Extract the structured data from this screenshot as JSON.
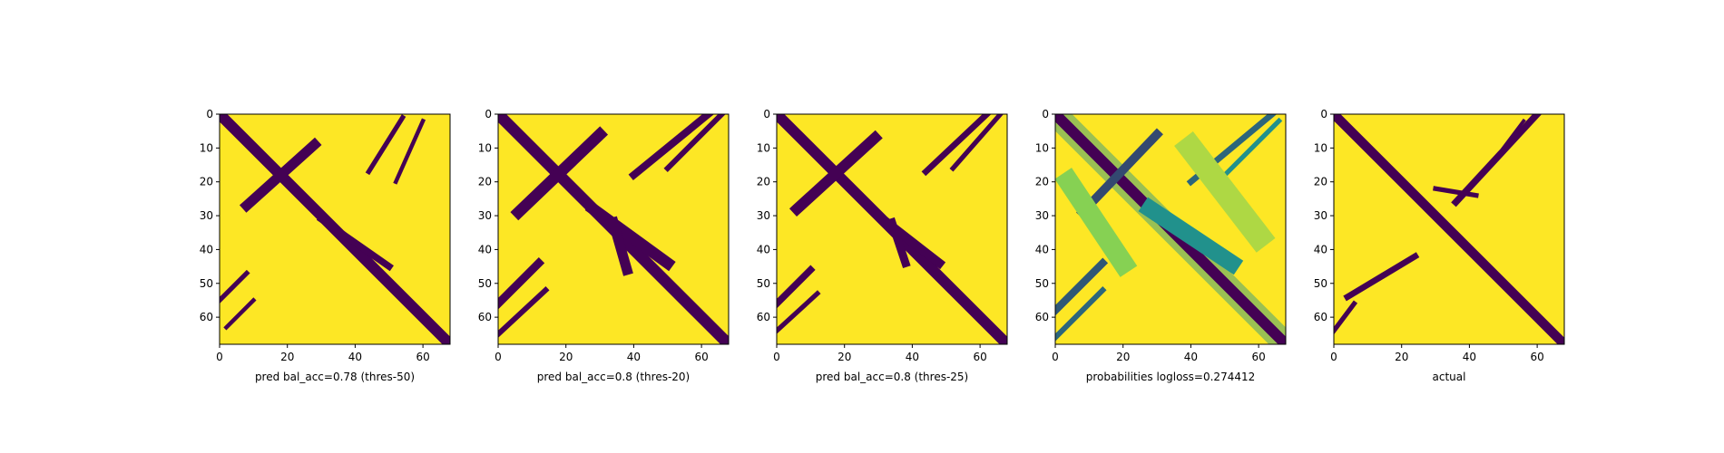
{
  "colors": {
    "background": "#fde725",
    "mark": "#440154",
    "mid": "#21918c",
    "light": "#5ec962"
  },
  "chart_data": [
    {
      "type": "heatmap",
      "xlabel": "pred bal_acc=0.78 (thres-50)",
      "xticks": [
        "0",
        "20",
        "40",
        "60"
      ],
      "yticks": [
        "0",
        "10",
        "20",
        "30",
        "40",
        "50",
        "60"
      ],
      "xlim": [
        0,
        68
      ],
      "ylim": [
        68,
        0
      ],
      "bands": [
        {
          "path": [
            [
              0,
              0
            ],
            [
              68,
              68
            ]
          ],
          "width": 3.2,
          "value": 0
        },
        {
          "path": [
            [
              8,
              27
            ],
            [
              28,
              9
            ]
          ],
          "width": 3.0,
          "value": 0
        },
        {
          "path": [
            [
              54,
              1
            ],
            [
              44,
              17
            ]
          ],
          "width": 1.4,
          "value": 0
        },
        {
          "path": [
            [
              60,
              2
            ],
            [
              52,
              20
            ]
          ],
          "width": 1.2,
          "value": 0
        },
        {
          "path": [
            [
              0,
              55
            ],
            [
              8,
              47
            ]
          ],
          "width": 1.4,
          "value": 0
        },
        {
          "path": [
            [
              2,
              63
            ],
            [
              10,
              55
            ]
          ],
          "width": 1.2,
          "value": 0
        },
        {
          "path": [
            [
              30,
              31
            ],
            [
              50,
              45
            ]
          ],
          "width": 2.0,
          "value": 0
        }
      ]
    },
    {
      "type": "heatmap",
      "xlabel": "pred bal_acc=0.8 (thres-20)",
      "xticks": [
        "0",
        "20",
        "40",
        "60"
      ],
      "yticks": [
        "0",
        "10",
        "20",
        "30",
        "40",
        "50",
        "60"
      ],
      "xlim": [
        0,
        68
      ],
      "ylim": [
        68,
        0
      ],
      "bands": [
        {
          "path": [
            [
              0,
              0
            ],
            [
              68,
              68
            ]
          ],
          "width": 3.4,
          "value": 0
        },
        {
          "path": [
            [
              6,
              29
            ],
            [
              30,
              6
            ]
          ],
          "width": 3.4,
          "value": 0
        },
        {
          "path": [
            [
              62,
              0
            ],
            [
              40,
              18
            ]
          ],
          "width": 2.2,
          "value": 0
        },
        {
          "path": [
            [
              66,
              0
            ],
            [
              50,
              16
            ]
          ],
          "width": 1.6,
          "value": 0
        },
        {
          "path": [
            [
              0,
              56
            ],
            [
              12,
              44
            ]
          ],
          "width": 2.4,
          "value": 0
        },
        {
          "path": [
            [
              0,
              65
            ],
            [
              14,
              52
            ]
          ],
          "width": 1.6,
          "value": 0
        },
        {
          "path": [
            [
              28,
              28
            ],
            [
              50,
              44
            ]
          ],
          "width": 3.4,
          "value": 0
        },
        {
          "path": [
            [
              34,
              32
            ],
            [
              38,
              46
            ]
          ],
          "width": 3.0,
          "value": 0
        }
      ]
    },
    {
      "type": "heatmap",
      "xlabel": "pred bal_acc=0.8 (thres-25)",
      "xticks": [
        "0",
        "20",
        "40",
        "60"
      ],
      "yticks": [
        "0",
        "10",
        "20",
        "30",
        "40",
        "50",
        "60"
      ],
      "xlim": [
        0,
        68
      ],
      "ylim": [
        68,
        0
      ],
      "bands": [
        {
          "path": [
            [
              0,
              0
            ],
            [
              68,
              68
            ]
          ],
          "width": 3.2,
          "value": 0
        },
        {
          "path": [
            [
              6,
              28
            ],
            [
              29,
              7
            ]
          ],
          "width": 3.2,
          "value": 0
        },
        {
          "path": [
            [
              62,
              0
            ],
            [
              44,
              17
            ]
          ],
          "width": 1.8,
          "value": 0
        },
        {
          "path": [
            [
              66,
              0
            ],
            [
              52,
              16
            ]
          ],
          "width": 1.4,
          "value": 0
        },
        {
          "path": [
            [
              0,
              56
            ],
            [
              10,
              46
            ]
          ],
          "width": 2.0,
          "value": 0
        },
        {
          "path": [
            [
              0,
              64
            ],
            [
              12,
              53
            ]
          ],
          "width": 1.4,
          "value": 0
        },
        {
          "path": [
            [
              30,
              30
            ],
            [
              48,
              44
            ]
          ],
          "width": 2.6,
          "value": 0
        },
        {
          "path": [
            [
              34,
              32
            ],
            [
              38,
              44
            ]
          ],
          "width": 2.4,
          "value": 0
        }
      ]
    },
    {
      "type": "heatmap",
      "xlabel": "probabilities logloss=0.274412",
      "xticks": [
        "0",
        "20",
        "40",
        "60"
      ],
      "yticks": [
        "0",
        "10",
        "20",
        "30",
        "40",
        "50",
        "60"
      ],
      "xlim": [
        0,
        68
      ],
      "ylim": [
        68,
        0
      ],
      "bands": [
        {
          "path": [
            [
              0,
              0
            ],
            [
              68,
              68
            ]
          ],
          "width": 3.2,
          "value": 0
        },
        {
          "path": [
            [
              8,
              29
            ],
            [
              30,
              6
            ]
          ],
          "width": 2.6,
          "value": 0.25
        },
        {
          "path": [
            [
              64,
              0
            ],
            [
              40,
              20
            ]
          ],
          "width": 1.8,
          "value": 0.35
        },
        {
          "path": [
            [
              66,
              2
            ],
            [
              50,
              18
            ]
          ],
          "width": 1.4,
          "value": 0.5
        },
        {
          "path": [
            [
              0,
              58
            ],
            [
              14,
              44
            ]
          ],
          "width": 2.2,
          "value": 0.3
        },
        {
          "path": [
            [
              0,
              66
            ],
            [
              14,
              52
            ]
          ],
          "width": 1.6,
          "value": 0.35
        },
        {
          "path": [
            [
              28,
              28
            ],
            [
              52,
              44
            ]
          ],
          "width": 5.0,
          "value": 0.5
        },
        {
          "path": [
            [
              4,
              20
            ],
            [
              20,
              44
            ]
          ],
          "width": 6.0,
          "value": 0.85
        },
        {
          "path": [
            [
              40,
              10
            ],
            [
              60,
              36
            ]
          ],
          "width": 7.0,
          "value": 0.9
        }
      ]
    },
    {
      "type": "heatmap",
      "xlabel": "actual",
      "xticks": [
        "0",
        "20",
        "40",
        "60"
      ],
      "yticks": [
        "0",
        "10",
        "20",
        "30",
        "40",
        "50",
        "60"
      ],
      "xlim": [
        0,
        68
      ],
      "ylim": [
        68,
        0
      ],
      "bands": [
        {
          "path": [
            [
              0,
              0
            ],
            [
              68,
              68
            ]
          ],
          "width": 2.8,
          "value": 0
        },
        {
          "path": [
            [
              60,
              0
            ],
            [
              36,
              26
            ]
          ],
          "width": 2.0,
          "value": 0
        },
        {
          "path": [
            [
              56,
              2
            ],
            [
              50,
              10
            ]
          ],
          "width": 1.0,
          "value": 0
        },
        {
          "path": [
            [
              4,
              54
            ],
            [
              24,
              42
            ]
          ],
          "width": 1.8,
          "value": 0
        },
        {
          "path": [
            [
              0,
              64
            ],
            [
              6,
              56
            ]
          ],
          "width": 1.4,
          "value": 0
        },
        {
          "path": [
            [
              30,
              22
            ],
            [
              42,
              24
            ]
          ],
          "width": 1.4,
          "value": 0
        }
      ]
    }
  ]
}
